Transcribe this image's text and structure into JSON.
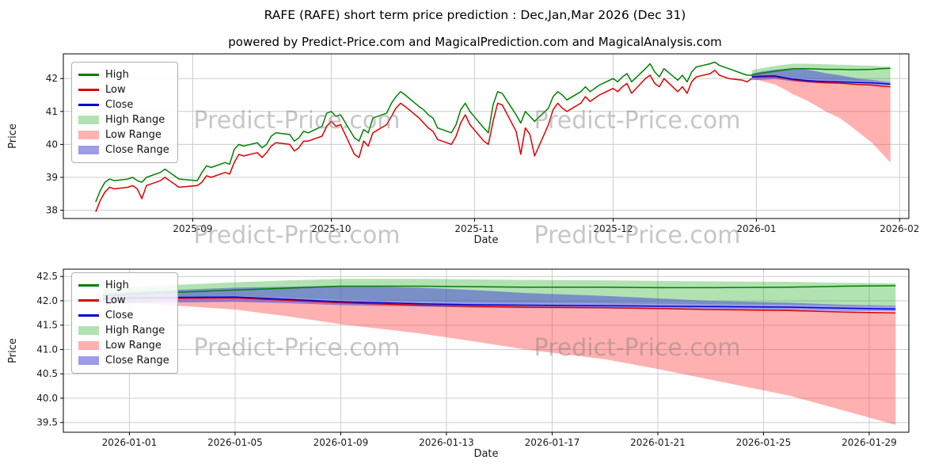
{
  "page": {
    "watermark_text": "Predict-Price.com"
  },
  "colors": {
    "high": "#008000",
    "low": "#dd0000",
    "close": "#0000cd",
    "high_range": "rgba(0,160,0,0.30)",
    "low_range": "rgba(255,60,60,0.40)",
    "close_range": "rgba(75,75,215,0.55)",
    "grid": "#cccccc",
    "spine": "#000000",
    "tick_text": "#1a1a1a"
  },
  "chart_data": [
    {
      "type": "line",
      "title": "RAFE (RAFE) short term price prediction : Dec,Jan,Mar 2026 (Dec 31)",
      "subtitle": "powered by Predict-Price.com and MagicalPrediction.com and MagicalAnalysis.com",
      "xlabel": "Date",
      "ylabel": "Price",
      "grid": true,
      "legend_position": "upper left",
      "xlim": [
        "2025-08-04",
        "2026-02-03"
      ],
      "ylim": [
        37.75,
        42.75
      ],
      "xticks": [
        {
          "value": "2025-09-01",
          "label": "2025-09"
        },
        {
          "value": "2025-10-01",
          "label": "2025-10"
        },
        {
          "value": "2025-11-01",
          "label": "2025-11"
        },
        {
          "value": "2025-12-01",
          "label": "2025-12"
        },
        {
          "value": "2026-01-01",
          "label": "2026-01"
        },
        {
          "value": "2026-02-01",
          "label": "2026-02"
        }
      ],
      "yticks": [
        {
          "value": 38,
          "label": "38"
        },
        {
          "value": 39,
          "label": "39"
        },
        {
          "value": 40,
          "label": "40"
        },
        {
          "value": 41,
          "label": "41"
        },
        {
          "value": 42,
          "label": "42"
        }
      ],
      "legend": [
        {
          "label": "High",
          "kind": "line",
          "color": "#008000"
        },
        {
          "label": "Low",
          "kind": "line",
          "color": "#dd0000"
        },
        {
          "label": "Close",
          "kind": "line",
          "color": "#0000cd"
        },
        {
          "label": "High Range",
          "kind": "patch",
          "color": "rgba(0,160,0,0.30)"
        },
        {
          "label": "Low Range",
          "kind": "patch",
          "color": "rgba(255,60,60,0.40)"
        },
        {
          "label": "Close Range",
          "kind": "patch",
          "color": "rgba(75,75,215,0.55)"
        }
      ],
      "history": {
        "dates": [
          "2025-08-11",
          "2025-08-12",
          "2025-08-13",
          "2025-08-14",
          "2025-08-15",
          "2025-08-18",
          "2025-08-19",
          "2025-08-20",
          "2025-08-21",
          "2025-08-22",
          "2025-08-25",
          "2025-08-26",
          "2025-08-27",
          "2025-08-28",
          "2025-08-29",
          "2025-09-02",
          "2025-09-03",
          "2025-09-04",
          "2025-09-05",
          "2025-09-08",
          "2025-09-09",
          "2025-09-10",
          "2025-09-11",
          "2025-09-12",
          "2025-09-15",
          "2025-09-16",
          "2025-09-17",
          "2025-09-18",
          "2025-09-19",
          "2025-09-22",
          "2025-09-23",
          "2025-09-24",
          "2025-09-25",
          "2025-09-26",
          "2025-09-29",
          "2025-09-30",
          "2025-10-01",
          "2025-10-02",
          "2025-10-03",
          "2025-10-06",
          "2025-10-07",
          "2025-10-08",
          "2025-10-09",
          "2025-10-10",
          "2025-10-13",
          "2025-10-14",
          "2025-10-15",
          "2025-10-16",
          "2025-10-17",
          "2025-10-20",
          "2025-10-21",
          "2025-10-22",
          "2025-10-23",
          "2025-10-24",
          "2025-10-27",
          "2025-10-28",
          "2025-10-29",
          "2025-10-30",
          "2025-10-31",
          "2025-11-03",
          "2025-11-04",
          "2025-11-05",
          "2025-11-06",
          "2025-11-07",
          "2025-11-10",
          "2025-11-11",
          "2025-11-12",
          "2025-11-13",
          "2025-11-14",
          "2025-11-17",
          "2025-11-18",
          "2025-11-19",
          "2025-11-20",
          "2025-11-21",
          "2025-11-24",
          "2025-11-25",
          "2025-11-26",
          "2025-11-28",
          "2025-12-01",
          "2025-12-02",
          "2025-12-03",
          "2025-12-04",
          "2025-12-05",
          "2025-12-08",
          "2025-12-09",
          "2025-12-10",
          "2025-12-11",
          "2025-12-12",
          "2025-12-15",
          "2025-12-16",
          "2025-12-17",
          "2025-12-18",
          "2025-12-19",
          "2025-12-22",
          "2025-12-23",
          "2025-12-24",
          "2025-12-26",
          "2025-12-29",
          "2025-12-30",
          "2025-12-31"
        ],
        "high": [
          38.25,
          38.6,
          38.85,
          38.95,
          38.9,
          38.95,
          39.0,
          38.9,
          38.85,
          39.0,
          39.15,
          39.25,
          39.15,
          39.05,
          38.95,
          38.9,
          39.15,
          39.35,
          39.3,
          39.45,
          39.4,
          39.85,
          40.0,
          39.95,
          40.05,
          39.9,
          40.0,
          40.25,
          40.35,
          40.3,
          40.1,
          40.2,
          40.4,
          40.35,
          40.55,
          40.95,
          41.0,
          40.85,
          40.9,
          40.2,
          40.1,
          40.45,
          40.35,
          40.8,
          40.95,
          41.25,
          41.45,
          41.6,
          41.5,
          41.15,
          41.05,
          40.9,
          40.8,
          40.5,
          40.35,
          40.6,
          41.05,
          41.25,
          41.0,
          40.5,
          40.35,
          41.2,
          41.6,
          41.55,
          40.9,
          40.65,
          41.0,
          40.85,
          40.7,
          41.1,
          41.45,
          41.6,
          41.5,
          41.35,
          41.6,
          41.75,
          41.6,
          41.8,
          42.0,
          41.9,
          42.05,
          42.15,
          41.9,
          42.3,
          42.45,
          42.2,
          42.05,
          42.3,
          41.95,
          42.1,
          41.9,
          42.2,
          42.35,
          42.45,
          42.5,
          42.4,
          42.3,
          42.15,
          42.1,
          42.1
        ],
        "low": [
          37.95,
          38.3,
          38.55,
          38.7,
          38.65,
          38.7,
          38.75,
          38.65,
          38.35,
          38.75,
          38.9,
          39.0,
          38.9,
          38.8,
          38.7,
          38.75,
          38.85,
          39.05,
          39.0,
          39.15,
          39.1,
          39.45,
          39.7,
          39.65,
          39.75,
          39.6,
          39.75,
          39.95,
          40.05,
          40.0,
          39.8,
          39.9,
          40.1,
          40.1,
          40.25,
          40.55,
          40.7,
          40.55,
          40.6,
          39.7,
          39.6,
          40.1,
          39.95,
          40.35,
          40.6,
          40.85,
          41.1,
          41.25,
          41.15,
          40.8,
          40.65,
          40.5,
          40.4,
          40.15,
          40.0,
          40.25,
          40.65,
          40.9,
          40.6,
          40.1,
          40.0,
          40.7,
          41.25,
          41.2,
          40.4,
          39.7,
          40.5,
          40.3,
          39.65,
          40.6,
          41.05,
          41.25,
          41.1,
          41.0,
          41.25,
          41.45,
          41.3,
          41.5,
          41.7,
          41.6,
          41.75,
          41.85,
          41.55,
          42.0,
          42.1,
          41.85,
          41.75,
          42.0,
          41.6,
          41.75,
          41.55,
          41.9,
          42.05,
          42.15,
          42.25,
          42.1,
          42.0,
          41.95,
          41.9,
          42.0
        ]
      },
      "prediction": {
        "dates": [
          "2025-12-31",
          "2026-01-02",
          "2026-01-05",
          "2026-01-07",
          "2026-01-09",
          "2026-01-12",
          "2026-01-14",
          "2026-01-16",
          "2026-01-19",
          "2026-01-21",
          "2026-01-23",
          "2026-01-26",
          "2026-01-28",
          "2026-01-30"
        ],
        "high": [
          42.1,
          42.16,
          42.22,
          42.26,
          42.3,
          42.3,
          42.29,
          42.28,
          42.28,
          42.27,
          42.27,
          42.28,
          42.3,
          42.31
        ],
        "low": [
          42.05,
          42.05,
          42.06,
          42.01,
          41.96,
          41.91,
          41.89,
          41.87,
          41.86,
          41.84,
          41.82,
          41.8,
          41.77,
          41.75
        ],
        "close": [
          42.05,
          42.07,
          42.08,
          42.03,
          41.98,
          41.94,
          41.92,
          41.91,
          41.9,
          41.89,
          41.88,
          41.87,
          41.85,
          41.83
        ],
        "high_range_upper": [
          42.25,
          42.31,
          42.38,
          42.42,
          42.45,
          42.45,
          42.44,
          42.43,
          42.42,
          42.41,
          42.4,
          42.39,
          42.37,
          42.36
        ],
        "high_range_lower": [
          42.05,
          42.08,
          42.1,
          42.06,
          42.02,
          41.99,
          41.97,
          41.96,
          41.95,
          41.94,
          41.93,
          41.92,
          41.9,
          41.89
        ],
        "low_range_upper": [
          42.05,
          42.05,
          42.06,
          42.01,
          41.96,
          41.91,
          41.89,
          41.87,
          41.86,
          41.84,
          41.82,
          41.8,
          41.77,
          41.75
        ],
        "low_range_lower": [
          42.0,
          41.93,
          41.82,
          41.68,
          41.52,
          41.33,
          41.17,
          41.0,
          40.8,
          40.6,
          40.38,
          40.05,
          39.75,
          39.45
        ],
        "close_range_upper": [
          42.15,
          42.21,
          42.27,
          42.29,
          42.31,
          42.27,
          42.22,
          42.16,
          42.1,
          42.05,
          42.0,
          41.96,
          41.92,
          41.9
        ],
        "close_range_lower": [
          41.95,
          41.96,
          41.98,
          41.95,
          41.91,
          41.88,
          41.86,
          41.85,
          41.84,
          41.83,
          41.82,
          41.81,
          41.79,
          41.78
        ]
      }
    },
    {
      "type": "line",
      "title": "",
      "xlabel": "Date",
      "ylabel": "Price",
      "grid": true,
      "legend_position": "upper left",
      "xlim": [
        "2025-12-29T12:00:00",
        "2026-01-30T12:00:00"
      ],
      "ylim": [
        39.3,
        42.65
      ],
      "xticks": [
        {
          "value": "2026-01-01",
          "label": "2026-01-01"
        },
        {
          "value": "2026-01-05",
          "label": "2026-01-05"
        },
        {
          "value": "2026-01-09",
          "label": "2026-01-09"
        },
        {
          "value": "2026-01-13",
          "label": "2026-01-13"
        },
        {
          "value": "2026-01-17",
          "label": "2026-01-17"
        },
        {
          "value": "2026-01-21",
          "label": "2026-01-21"
        },
        {
          "value": "2026-01-25",
          "label": "2026-01-25"
        },
        {
          "value": "2026-01-29",
          "label": "2026-01-29"
        }
      ],
      "yticks": [
        {
          "value": 39.5,
          "label": "39.5"
        },
        {
          "value": 40,
          "label": "40.0"
        },
        {
          "value": 40.5,
          "label": "40.5"
        },
        {
          "value": 41,
          "label": "41.0"
        },
        {
          "value": 41.5,
          "label": "41.5"
        },
        {
          "value": 42,
          "label": "42.0"
        },
        {
          "value": 42.5,
          "label": "42.5"
        }
      ],
      "legend": [
        {
          "label": "High",
          "kind": "line",
          "color": "#008000"
        },
        {
          "label": "Low",
          "kind": "line",
          "color": "#dd0000"
        },
        {
          "label": "Close",
          "kind": "line",
          "color": "#0000cd"
        },
        {
          "label": "High Range",
          "kind": "patch",
          "color": "rgba(0,160,0,0.30)"
        },
        {
          "label": "Low Range",
          "kind": "patch",
          "color": "rgba(255,60,60,0.40)"
        },
        {
          "label": "Close Range",
          "kind": "patch",
          "color": "rgba(75,75,215,0.55)"
        }
      ],
      "prediction_ref": 0
    }
  ]
}
